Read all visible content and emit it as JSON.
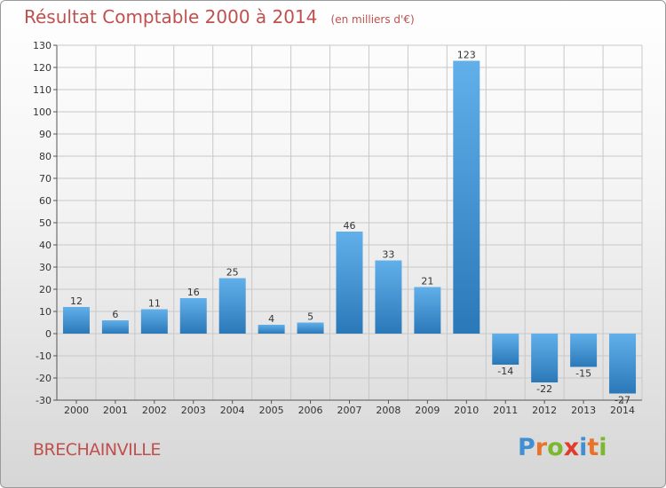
{
  "chart_data": {
    "type": "bar",
    "title": "Résultat Comptable 2000 à 2014",
    "subtitle": "(en milliers d'€)",
    "categories": [
      "2000",
      "2001",
      "2002",
      "2003",
      "2004",
      "2005",
      "2006",
      "2007",
      "2008",
      "2009",
      "2010",
      "2011",
      "2012",
      "2013",
      "2014"
    ],
    "values": [
      12,
      6,
      11,
      16,
      25,
      4,
      5,
      46,
      33,
      21,
      123,
      -14,
      -22,
      -15,
      -27
    ],
    "data_labels": [
      "12",
      "6",
      "11",
      "16",
      "25",
      "4",
      "5",
      "46",
      "33",
      "21",
      "123",
      "-14",
      "-22",
      "-15",
      "-27"
    ],
    "ylim": [
      -30,
      130
    ],
    "yticks": [
      -30,
      -20,
      -10,
      0,
      10,
      20,
      30,
      40,
      50,
      60,
      70,
      80,
      90,
      100,
      110,
      120,
      130
    ],
    "xlabel": "",
    "ylabel": "",
    "grid": true,
    "colors": {
      "bar_light": "#62b0ea",
      "bar_dark": "#2a78b8",
      "grid": "#c8c8c8",
      "title": "#c0504d"
    }
  },
  "location": "BRECHAINVILLE",
  "brand": {
    "name": "Proxiti",
    "letters": [
      "P",
      "r",
      "o",
      "x",
      "i",
      "t",
      "i"
    ],
    "letter_colors": [
      "#3f8fd2",
      "#e8732a",
      "#7cb82f",
      "#e13b2b",
      "#3f8fd2",
      "#e8732a",
      "#7cb82f"
    ]
  }
}
